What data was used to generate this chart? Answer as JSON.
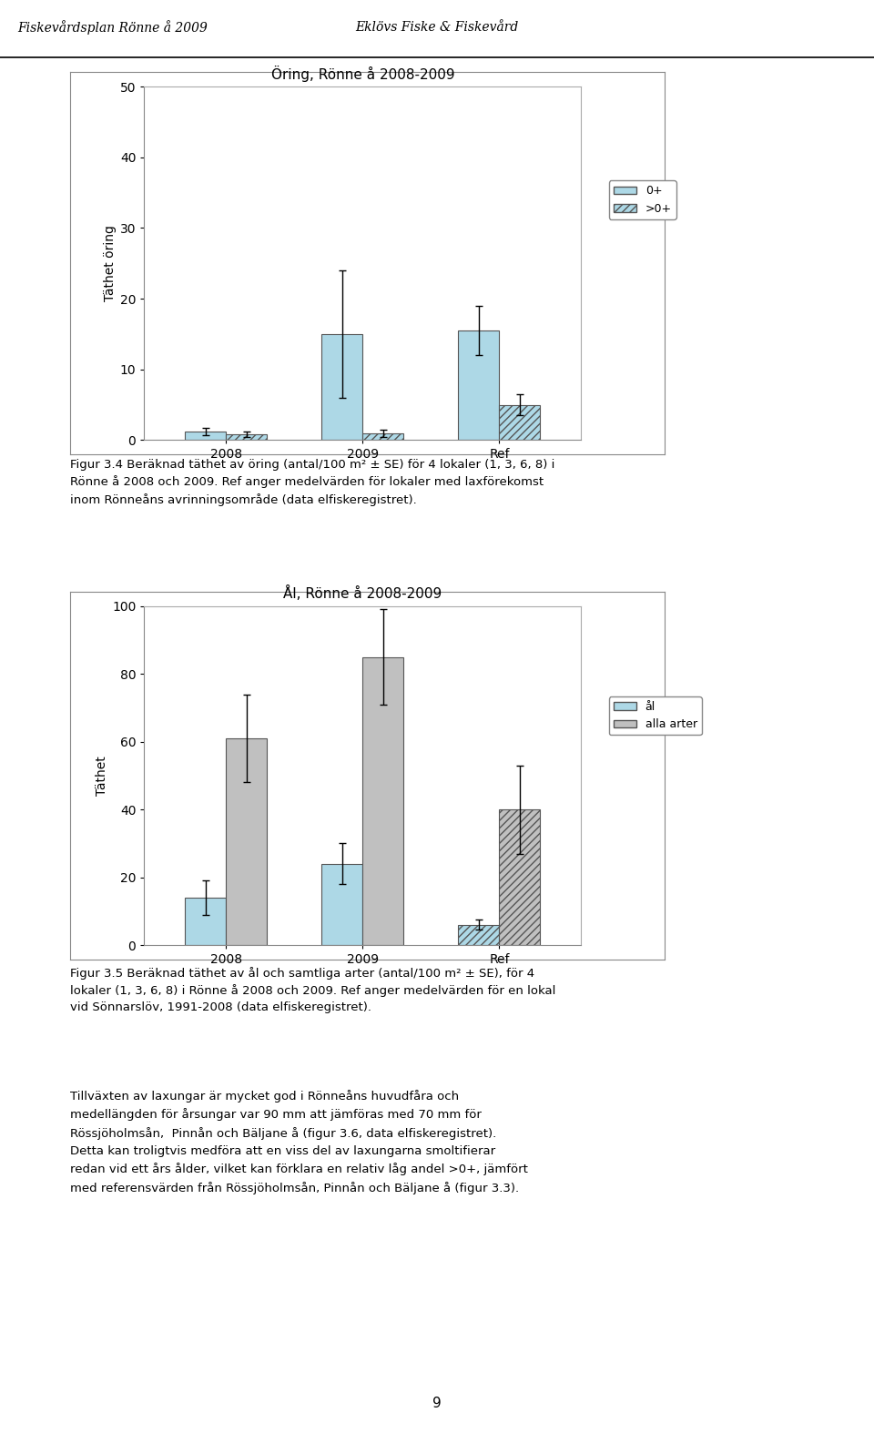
{
  "page_title_left": "Fiskevårdsplan Rönne å 2009",
  "page_title_right": "Eklövs Fiske & Fiskevård",
  "page_number": "9",
  "chart1": {
    "title": "Öring, Rönne å 2008-2009",
    "ylabel": "Täthet öring",
    "xlabels": [
      "2008",
      "2009",
      "Ref"
    ],
    "ylim": [
      0,
      50
    ],
    "yticks": [
      0,
      10,
      20,
      30,
      40,
      50
    ],
    "series": {
      "0+": {
        "values": [
          1.2,
          15.0,
          15.5
        ],
        "errors": [
          0.5,
          9.0,
          3.5
        ],
        "color": "#add8e6",
        "hatch": ""
      },
      ">0+": {
        "values": [
          0.8,
          1.0,
          5.0
        ],
        "errors": [
          0.4,
          0.5,
          1.5
        ],
        "color": "#add8e6",
        "hatch": "////"
      }
    },
    "bar_width": 0.3,
    "group_positions": [
      1,
      2,
      3
    ]
  },
  "text1": "Figur 3.4 Beräknad täthet av öring (antal/100 m² ± SE) för 4 lokaler (1, 3, 6, 8) i\nRönne å 2008 och 2009. Ref anger medelvärden för lokaler med laxförekomst\ninom Rönneåns avrinningsområde (data elfiskeregistret).",
  "chart2": {
    "title": "Ål, Rönne å 2008-2009",
    "ylabel": "Täthet",
    "xlabels": [
      "2008",
      "2009",
      "Ref"
    ],
    "ylim": [
      0,
      100
    ],
    "yticks": [
      0,
      20,
      40,
      60,
      80,
      100
    ],
    "series": {
      "ål": {
        "values": [
          14.0,
          24.0,
          6.0
        ],
        "errors": [
          5.0,
          6.0,
          1.5
        ],
        "color_2008": "#add8e6",
        "color_2009": "#add8e6",
        "color_ref": "#add8e6",
        "hatch_2008": "",
        "hatch_2009": "",
        "hatch_ref": "////"
      },
      "alla arter": {
        "values": [
          61.0,
          85.0,
          40.0
        ],
        "errors": [
          13.0,
          14.0,
          13.0
        ],
        "color_2008": "#c0c0c0",
        "color_2009": "#c0c0c0",
        "color_ref": "#c0c0c0",
        "hatch_2008": "",
        "hatch_2009": "",
        "hatch_ref": "////"
      }
    },
    "bar_width": 0.3,
    "group_positions": [
      1,
      2,
      3
    ]
  },
  "text2": "Figur 3.5 Beräknad täthet av ål och samtliga arter (antal/100 m² ± SE), för 4\nlokaler (1, 3, 6, 8) i Rönne å 2008 och 2009. Ref anger medelvärden för en lokal\nvid Sönnarslöv, 1991-2008 (data elfiskeregistret).",
  "text3": "Tillväxten av laxungar är mycket god i Rönneåns huvudfåra och\nmedellängden för årsungar var 90 mm att jämföras med 70 mm för\nRössjöholmsån,  Pinnån och Bäljane å (figur 3.6, data elfiskeregistret).\nDetta kan troligtvis medföra att en viss del av laxungarna smoltifierar\nredan vid ett års ålder, vilket kan förklara en relativ låg andel >0+, jämfört\nmed referensvärden från Rössjöholmsån, Pinnån och Bäljane å (figur 3.3).",
  "bg_color": "#ffffff",
  "text_color": "#000000",
  "font_size_title": 11,
  "font_size_axis": 10,
  "font_size_tick": 10,
  "font_size_legend": 9,
  "font_size_caption": 9.5,
  "font_size_header": 10
}
